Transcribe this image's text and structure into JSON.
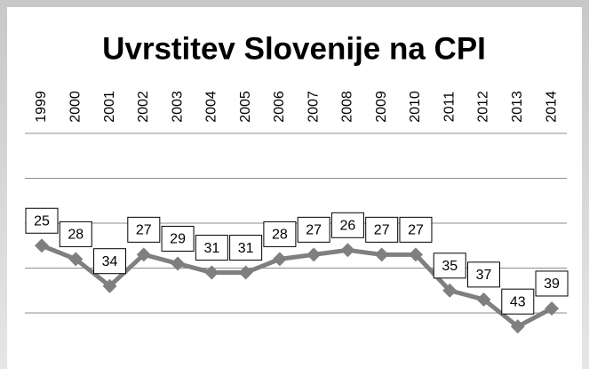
{
  "chart_data": {
    "type": "line",
    "title": "Uvrstitev Slovenije na CPI",
    "categories": [
      "1999",
      "2000",
      "2001",
      "2002",
      "2003",
      "2004",
      "2005",
      "2006",
      "2007",
      "2008",
      "2009",
      "2010",
      "2011",
      "2012",
      "2013",
      "2014"
    ],
    "values": [
      25,
      28,
      34,
      27,
      29,
      31,
      31,
      28,
      27,
      26,
      27,
      27,
      35,
      37,
      43,
      39
    ],
    "color": "#7f7f7f",
    "ylim": [
      0,
      50
    ],
    "yticks": [
      0,
      10,
      20,
      30,
      40
    ],
    "y_reversed": true,
    "grid": true,
    "data_labels": true
  }
}
